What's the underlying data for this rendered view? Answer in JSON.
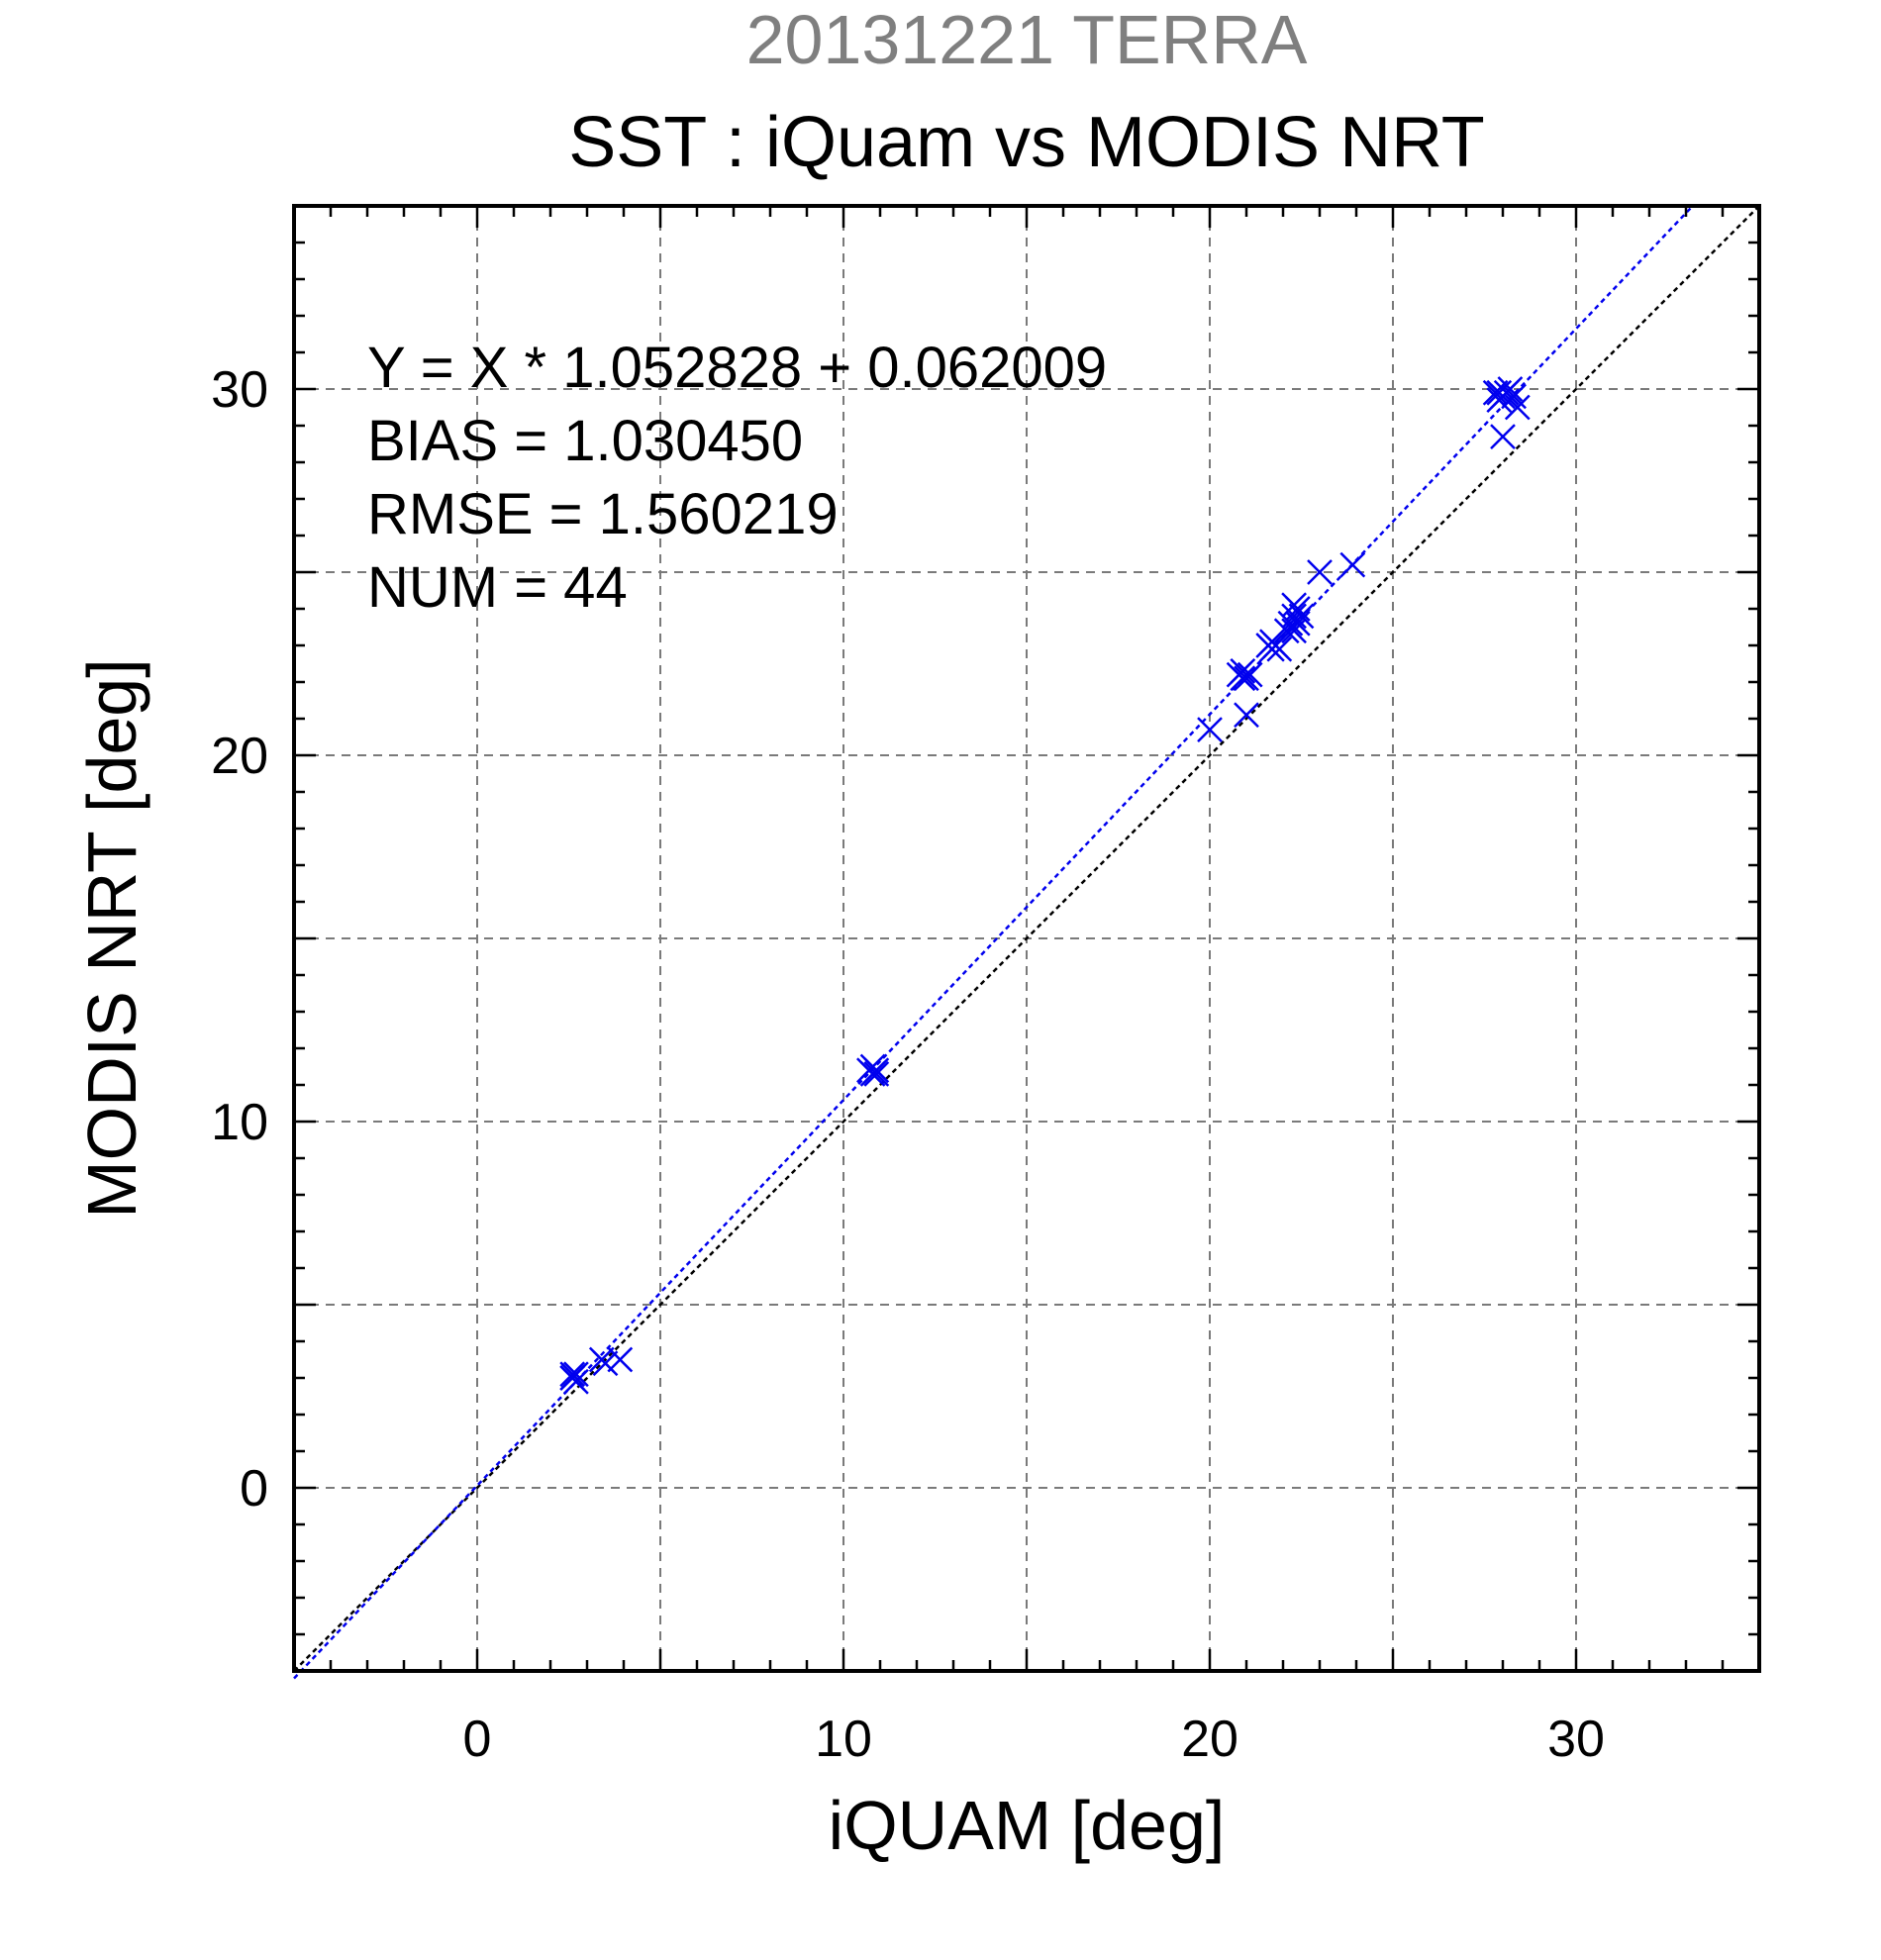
{
  "chart_data": {
    "type": "scatter",
    "subtitle": "20131221 TERRA",
    "title": "SST : iQuam vs MODIS NRT",
    "xlabel": "iQUAM [deg]",
    "ylabel": "MODIS NRT [deg]",
    "xlim": [
      -5,
      35
    ],
    "ylim": [
      -5,
      35
    ],
    "xticks": [
      0,
      10,
      20,
      30
    ],
    "yticks": [
      0,
      10,
      20,
      30
    ],
    "grid": true,
    "annotations": [
      "Y = X * 1.052828 + 0.062009",
      "BIAS = 1.030450",
      "RMSE = 1.560219",
      "NUM = 44"
    ],
    "fit_line": {
      "slope": 1.052828,
      "intercept": 0.062009,
      "color": "#0000ee"
    },
    "identity_line": {
      "slope": 1,
      "intercept": 0,
      "color": "#000000"
    },
    "marker_color": "#0000ee",
    "points": [
      [
        2.6,
        3.0
      ],
      [
        2.6,
        3.1
      ],
      [
        2.7,
        2.9
      ],
      [
        2.7,
        3.1
      ],
      [
        2.6,
        3.0
      ],
      [
        3.4,
        3.5
      ],
      [
        3.5,
        3.4
      ],
      [
        3.9,
        3.5
      ],
      [
        10.7,
        11.4
      ],
      [
        10.8,
        11.3
      ],
      [
        10.9,
        11.4
      ],
      [
        10.8,
        11.5
      ],
      [
        10.9,
        11.3
      ],
      [
        20.0,
        20.7
      ],
      [
        21.0,
        21.1
      ],
      [
        20.8,
        22.2
      ],
      [
        20.9,
        22.3
      ],
      [
        21.0,
        22.1
      ],
      [
        21.1,
        22.2
      ],
      [
        20.9,
        22.1
      ],
      [
        21.6,
        23.0
      ],
      [
        21.7,
        22.9
      ],
      [
        21.8,
        23.0
      ],
      [
        21.7,
        23.1
      ],
      [
        21.9,
        22.9
      ],
      [
        22.1,
        23.4
      ],
      [
        22.2,
        23.6
      ],
      [
        22.3,
        23.4
      ],
      [
        22.3,
        23.8
      ],
      [
        22.4,
        23.6
      ],
      [
        22.4,
        24.0
      ],
      [
        22.5,
        23.8
      ],
      [
        22.3,
        24.1
      ],
      [
        23.0,
        25.0
      ],
      [
        23.9,
        25.2
      ],
      [
        27.9,
        29.9
      ],
      [
        28.0,
        29.8
      ],
      [
        28.1,
        29.9
      ],
      [
        27.9,
        29.7
      ],
      [
        28.2,
        30.0
      ],
      [
        28.0,
        28.7
      ],
      [
        28.4,
        29.5
      ],
      [
        28.3,
        29.8
      ],
      [
        27.8,
        29.9
      ]
    ]
  }
}
